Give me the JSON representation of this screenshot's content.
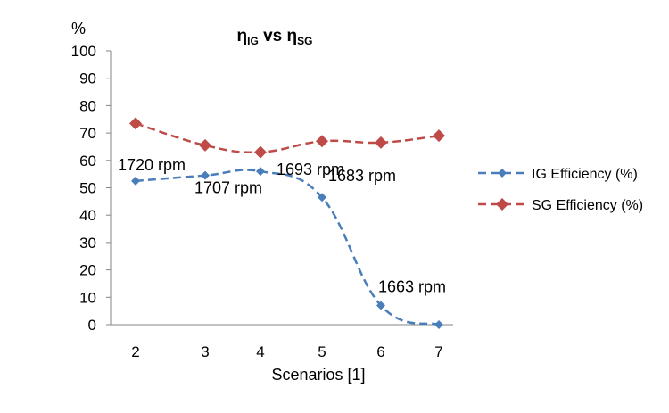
{
  "chart_data": {
    "type": "line",
    "title": {
      "main_1": "η",
      "sub_1": "IG",
      "vs": " vs ",
      "main_2": "η",
      "sub_2": "SG"
    },
    "xlabel": "Scenarios [1]",
    "ylabel": "%",
    "ylim": [
      0,
      100
    ],
    "yticks": [
      "0",
      "10",
      "20",
      "30",
      "40",
      "50",
      "60",
      "70",
      "80",
      "90",
      "100"
    ],
    "categories": [
      "2",
      "3",
      "4",
      "5",
      "6",
      "7"
    ],
    "grid": false,
    "legend_position": "right",
    "series": [
      {
        "name": "IG Efficiency (%)",
        "color": "#4a7ebb",
        "marker": "diamond",
        "line_style": "dashed",
        "smooth": true,
        "values": [
          52.5,
          54.5,
          56,
          46.5,
          7,
          0
        ]
      },
      {
        "name": "SG Efficiency (%)",
        "color": "#be4b48",
        "marker": "diamond",
        "line_style": "dashed",
        "smooth": true,
        "values": [
          73.5,
          65.5,
          63,
          67,
          66.5,
          69
        ]
      }
    ],
    "annotations": [
      {
        "series": 0,
        "point": 0,
        "text": "1720 rpm"
      },
      {
        "series": 0,
        "point": 1,
        "text": "1707 rpm"
      },
      {
        "series": 0,
        "point": 2,
        "text": "1693 rpm"
      },
      {
        "series": 0,
        "point": 3,
        "text": "1683 rpm"
      },
      {
        "series": 0,
        "point": 4,
        "text": "1663 rpm"
      }
    ]
  }
}
